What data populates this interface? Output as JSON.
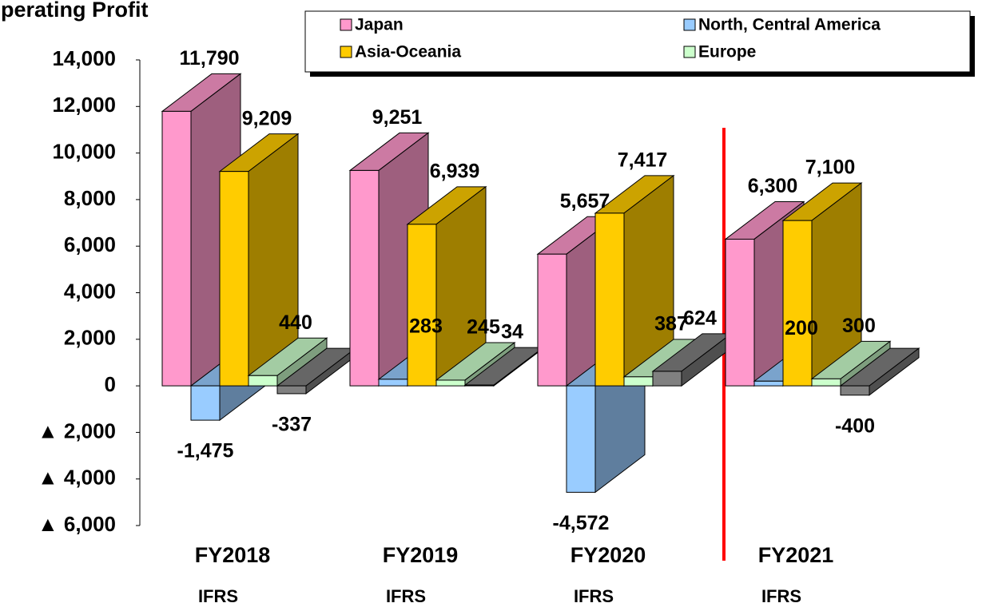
{
  "chart_data": {
    "type": "bar3d",
    "title": "Operating Profit",
    "categories": [
      "FY2018",
      "FY2019",
      "FY2020",
      "FY2021"
    ],
    "sublabels": [
      "IFRS",
      "IFRS",
      "IFRS",
      "IFRS"
    ],
    "series": [
      {
        "name": "Japan",
        "color": "#ff99cc",
        "values": [
          11790,
          9251,
          5657,
          6300
        ],
        "value_labels": [
          "11,790",
          "9,251",
          "5,657",
          "6,300"
        ]
      },
      {
        "name": "North, Central America",
        "color": "#99ccff",
        "values": [
          -1475,
          283,
          -4572,
          200
        ],
        "value_labels": [
          "-1,475",
          "283",
          "-4,572",
          "200"
        ]
      },
      {
        "name": "Asia-Oceania",
        "color": "#ffcc00",
        "values": [
          9209,
          6939,
          7417,
          7100
        ],
        "value_labels": [
          "9,209",
          "6,939",
          "7,417",
          "7,100"
        ]
      },
      {
        "name": "Europe",
        "color": "#ccffcc",
        "values": [
          440,
          245,
          387,
          300
        ]
      },
      {
        "color": "#808080",
        "values": [
          -337,
          34,
          624,
          -400
        ]
      }
    ],
    "ylim": [
      -6000,
      14000
    ],
    "yticks": [
      {
        "value": 14000,
        "label": "14,000"
      },
      {
        "value": 12000,
        "label": "12,000"
      },
      {
        "value": 10000,
        "label": "10,000"
      },
      {
        "value": 8000,
        "label": "8,000"
      },
      {
        "value": 6000,
        "label": "6,000"
      },
      {
        "value": 4000,
        "label": "4,000"
      },
      {
        "value": 2000,
        "label": "2,000"
      },
      0,
      {
        "value": -2000,
        "label": "▲ 2,000"
      },
      {
        "value": -4000,
        "label": "▲ 4,000"
      },
      {
        "value": -6000,
        "label": "▲ 6,000"
      }
    ]
  }
}
